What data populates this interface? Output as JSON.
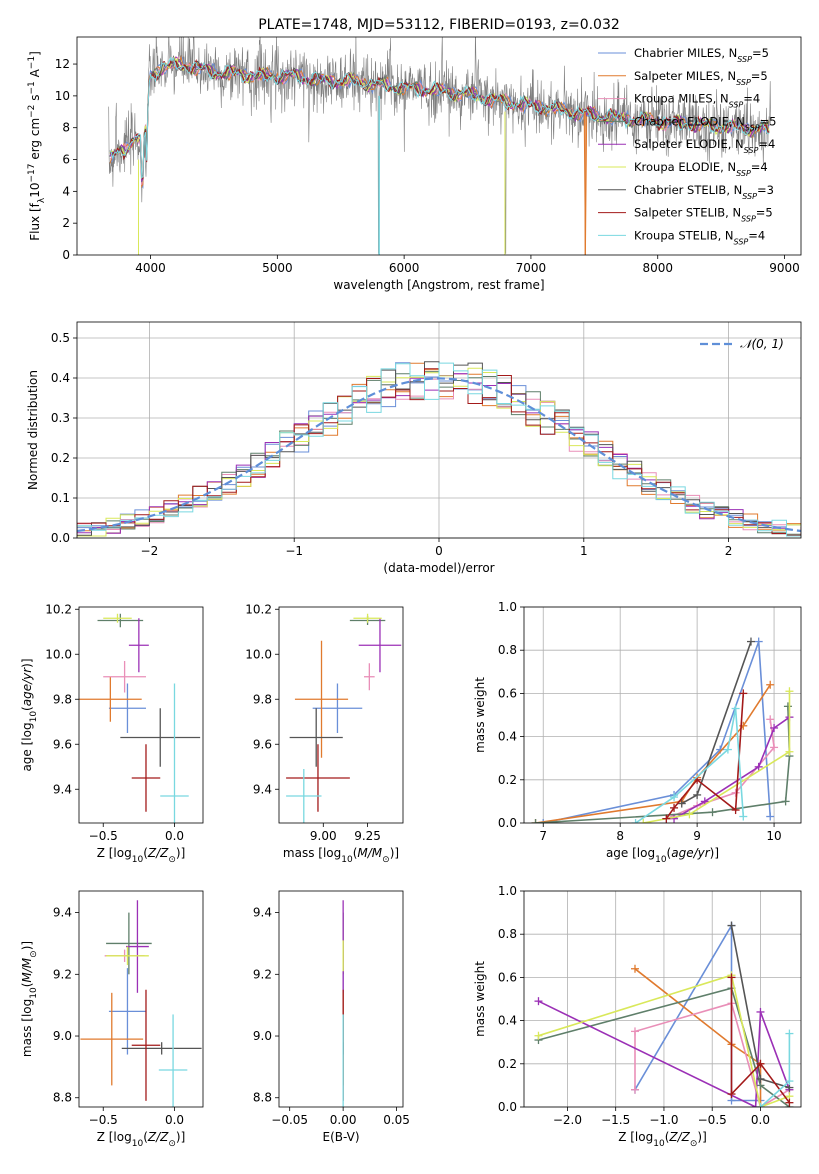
{
  "colors": [
    "#6a8fd8",
    "#e07a2e",
    "#e98fb8",
    "#5f7f6a",
    "#9b30b6",
    "#d9e85a",
    "#555555",
    "#a31a1a",
    "#79d8e0"
  ],
  "chart_data": [
    {
      "id": "spectrum",
      "type": "line",
      "title": "PLATE=1748, MJD=53112, FIBERID=0193, z=0.032",
      "xlabel": "wavelength [Angstrom, rest frame]",
      "ylabel": "Flux [f_λ 10^-17 erg cm^-2 s^-1 A^-1]",
      "xlim": [
        3420,
        9130
      ],
      "ylim": [
        0,
        13.7
      ],
      "xticks": [
        "4000",
        "5000",
        "6000",
        "7000",
        "8000",
        "9000"
      ],
      "yticks": [
        "0",
        "2",
        "4",
        "6",
        "8",
        "10",
        "12"
      ],
      "grid": false,
      "legend_position": "top-right",
      "legend": [
        {
          "base": "Chabrier MILES, N",
          "sub": "SSP",
          "tail": "=5"
        },
        {
          "base": "Salpeter MILES, N",
          "sub": "SSP",
          "tail": "=5"
        },
        {
          "base": "Kroupa MILES, N",
          "sub": "SSP",
          "tail": "=4"
        },
        {
          "base": "Chabrier ELODIE, N",
          "sub": "SSP",
          "tail": "=5"
        },
        {
          "base": "Salpeter ELODIE, N",
          "sub": "SSP",
          "tail": "=4"
        },
        {
          "base": "Kroupa ELODIE, N",
          "sub": "SSP",
          "tail": "=4"
        },
        {
          "base": "Chabrier STELIB, N",
          "sub": "SSP",
          "tail": "=3"
        },
        {
          "base": "Salpeter STELIB, N",
          "sub": "SSP",
          "tail": "=5"
        },
        {
          "base": "Kroupa STELIB, N",
          "sub": "SSP",
          "tail": "=4"
        }
      ],
      "continuum": {
        "x": [
          3700,
          3800,
          3900,
          4000,
          4100,
          4300,
          4500,
          4700,
          4900,
          5100,
          5300,
          5600,
          5900,
          6200,
          6500,
          6800,
          7100,
          7400,
          7700,
          8000,
          8300,
          8600,
          8900
        ],
        "y": [
          6.2,
          6.6,
          7.8,
          11.2,
          11.9,
          11.9,
          11.5,
          11.4,
          11.2,
          11.3,
          11.0,
          10.9,
          10.6,
          10.4,
          10.1,
          9.6,
          9.3,
          8.9,
          8.6,
          8.4,
          8.2,
          8.0,
          7.9
        ]
      },
      "notes": "observed spectrum (grey) overplotted with 9 model fits; sharp drops near 3900, 5800, 6800 and 7430 Angstrom"
    },
    {
      "id": "residuals",
      "type": "histogram",
      "xlabel": "(data-model)/error",
      "ylabel": "Normed distribution",
      "xlim": [
        -2.5,
        2.5
      ],
      "ylim": [
        0,
        0.54
      ],
      "xticks": [
        -2,
        -1,
        0,
        1,
        2
      ],
      "yticks": [
        0.0,
        0.1,
        0.2,
        0.3,
        0.4,
        0.5
      ],
      "grid": true,
      "legend_position": "top-right",
      "legend": [
        "𝒩(0, 1)"
      ],
      "bin_width": 0.1,
      "reference_curve": "gaussian mean 0 sigma 1",
      "series_count": 9
    },
    {
      "id": "age-vs-Z",
      "type": "errorbar",
      "xlabel": "Z [log10(Z/Z⊙)]",
      "ylabel": "age  [log10(age/yr)]",
      "xlim": [
        -0.67,
        0.2
      ],
      "ylim": [
        9.25,
        10.21
      ],
      "xticks": [
        -0.5,
        0.0
      ],
      "yticks": [
        9.4,
        9.6,
        9.8,
        10.0,
        10.2
      ],
      "points": [
        {
          "x": -0.33,
          "y": 9.76,
          "xerr": 0.13,
          "yerr": 0.11
        },
        {
          "x": -0.45,
          "y": 9.8,
          "xerr": 0.22,
          "yerr": 0.1
        },
        {
          "x": -0.35,
          "y": 9.9,
          "xerr": 0.15,
          "yerr": 0.07
        },
        {
          "x": -0.38,
          "y": 10.15,
          "xerr": 0.16,
          "yerr": 0.03
        },
        {
          "x": -0.25,
          "y": 10.04,
          "xerr": 0.07,
          "yerr": 0.12
        },
        {
          "x": -0.4,
          "y": 10.16,
          "xerr": 0.1,
          "yerr": 0.02
        },
        {
          "x": -0.1,
          "y": 9.63,
          "xerr": 0.28,
          "yerr": 0.13
        },
        {
          "x": -0.2,
          "y": 9.45,
          "xerr": 0.1,
          "yerr": 0.15
        },
        {
          "x": 0.0,
          "y": 9.37,
          "xerr": 0.1,
          "yerr": 0.5
        }
      ]
    },
    {
      "id": "age-vs-mass",
      "type": "errorbar",
      "xlabel": "mass [log10(M/M⊙)]",
      "ylabel": "",
      "xlim": [
        8.75,
        9.45
      ],
      "ylim": [
        9.25,
        10.21
      ],
      "xticks": [
        9.0,
        9.25
      ],
      "yticks": [
        9.4,
        9.6,
        9.8,
        10.0,
        10.2
      ],
      "points": [
        {
          "x": 9.08,
          "y": 9.76,
          "xerr": 0.14,
          "yerr": 0.11
        },
        {
          "x": 8.99,
          "y": 9.8,
          "xerr": 0.15,
          "yerr": 0.26
        },
        {
          "x": 9.26,
          "y": 9.9,
          "xerr": 0.03,
          "yerr": 0.06
        },
        {
          "x": 9.25,
          "y": 10.15,
          "xerr": 0.1,
          "yerr": 0.02
        },
        {
          "x": 9.32,
          "y": 10.04,
          "xerr": 0.12,
          "yerr": 0.12
        },
        {
          "x": 9.25,
          "y": 10.16,
          "xerr": 0.08,
          "yerr": 0.02
        },
        {
          "x": 8.96,
          "y": 9.63,
          "xerr": 0.15,
          "yerr": 0.13
        },
        {
          "x": 8.97,
          "y": 9.45,
          "xerr": 0.18,
          "yerr": 0.15
        },
        {
          "x": 8.89,
          "y": 9.37,
          "xerr": 0.1,
          "yerr": 0.12
        }
      ]
    },
    {
      "id": "massweight-vs-age",
      "type": "line",
      "xlabel": "age  [log10(age/yr)]",
      "ylabel": "mass weight",
      "xlim": [
        6.75,
        10.35
      ],
      "ylim": [
        0,
        1.0
      ],
      "xticks": [
        7,
        8,
        9,
        10
      ],
      "yticks": [
        0.0,
        0.2,
        0.4,
        0.6,
        0.8,
        1.0
      ],
      "grid": true,
      "series": [
        {
          "x": [
            7.0,
            8.7,
            9.3,
            9.8,
            9.95
          ],
          "y": [
            0.0,
            0.13,
            0.34,
            0.84,
            0.03
          ]
        },
        {
          "x": [
            6.9,
            8.8,
            9.0,
            9.6,
            9.95
          ],
          "y": [
            0.0,
            0.1,
            0.21,
            0.45,
            0.64
          ]
        },
        {
          "x": [
            8.6,
            9.0,
            9.5,
            10.0,
            9.95
          ],
          "y": [
            0.02,
            0.08,
            0.14,
            0.35,
            0.48
          ]
        },
        {
          "x": [
            6.9,
            9.2,
            10.15,
            10.2,
            10.18
          ],
          "y": [
            0.0,
            0.05,
            0.1,
            0.31,
            0.54
          ]
        },
        {
          "x": [
            8.7,
            9.1,
            9.8,
            10.0,
            10.2
          ],
          "y": [
            0.02,
            0.1,
            0.26,
            0.44,
            0.49
          ]
        },
        {
          "x": [
            8.3,
            8.9,
            10.2,
            10.2
          ],
          "y": [
            0.0,
            0.04,
            0.33,
            0.61
          ]
        },
        {
          "x": [
            8.8,
            9.0,
            9.7
          ],
          "y": [
            0.09,
            0.13,
            0.84
          ]
        },
        {
          "x": [
            8.6,
            8.7,
            9.0,
            9.5,
            9.6
          ],
          "y": [
            0.02,
            0.07,
            0.2,
            0.06,
            0.6
          ]
        },
        {
          "x": [
            8.2,
            8.7,
            9.4,
            9.5,
            9.6
          ],
          "y": [
            0.0,
            0.12,
            0.34,
            0.53,
            0.03
          ]
        }
      ]
    },
    {
      "id": "mass-vs-Z",
      "type": "errorbar",
      "xlabel": "Z [log10(Z/Z⊙)]",
      "ylabel": "mass [log10(M/M⊙)]",
      "xlim": [
        -0.67,
        0.2
      ],
      "ylim": [
        8.77,
        9.47
      ],
      "xticks": [
        -0.5,
        0.0
      ],
      "yticks": [
        8.8,
        9.0,
        9.2,
        9.4
      ],
      "points": [
        {
          "x": -0.33,
          "y": 9.08,
          "xerr": 0.13,
          "yerr": 0.14
        },
        {
          "x": -0.44,
          "y": 8.99,
          "xerr": 0.22,
          "yerr": 0.15
        },
        {
          "x": -0.35,
          "y": 9.26,
          "xerr": 0.14,
          "yerr": 0.02
        },
        {
          "x": -0.32,
          "y": 9.3,
          "xerr": 0.16,
          "yerr": 0.1
        },
        {
          "x": -0.26,
          "y": 9.29,
          "xerr": 0.08,
          "yerr": 0.15
        },
        {
          "x": -0.33,
          "y": 9.26,
          "xerr": 0.15,
          "yerr": 0.03
        },
        {
          "x": -0.09,
          "y": 8.96,
          "xerr": 0.28,
          "yerr": 0.02
        },
        {
          "x": -0.2,
          "y": 8.97,
          "xerr": 0.1,
          "yerr": 0.18
        },
        {
          "x": -0.01,
          "y": 8.89,
          "xerr": 0.1,
          "yerr": 0.18
        }
      ]
    },
    {
      "id": "mass-vs-EBV",
      "type": "errorbar",
      "xlabel": "E(B-V)",
      "ylabel": "",
      "xlim": [
        -0.06,
        0.056
      ],
      "ylim": [
        8.77,
        9.47
      ],
      "xticks": [
        -0.05,
        0.0,
        0.05
      ],
      "yticks": [
        8.8,
        9.0,
        9.2,
        9.4
      ],
      "points": [
        {
          "x": 0.0,
          "y": 9.08,
          "xerr": 0,
          "yerr": 0.14
        },
        {
          "x": 0.0,
          "y": 8.99,
          "xerr": 0,
          "yerr": 0.15
        },
        {
          "x": 0.0,
          "y": 9.26,
          "xerr": 0,
          "yerr": 0.02
        },
        {
          "x": 0.0,
          "y": 9.3,
          "xerr": 0,
          "yerr": 0.1
        },
        {
          "x": 0.0,
          "y": 9.29,
          "xerr": 0,
          "yerr": 0.15
        },
        {
          "x": 0.0,
          "y": 9.26,
          "xerr": 0,
          "yerr": 0.05
        },
        {
          "x": 0.0,
          "y": 8.96,
          "xerr": 0,
          "yerr": 0.02
        },
        {
          "x": 0.0,
          "y": 8.97,
          "xerr": 0,
          "yerr": 0.18
        },
        {
          "x": 0.0,
          "y": 8.89,
          "xerr": 0,
          "yerr": 0.18
        }
      ]
    },
    {
      "id": "massweight-vs-Z",
      "type": "line",
      "xlabel": "Z [log10(Z/Z⊙)]",
      "ylabel": "mass weight",
      "xlim": [
        -2.45,
        0.42
      ],
      "ylim": [
        0,
        1.0
      ],
      "xticks": [
        -2.0,
        -1.5,
        -1.0,
        -0.5,
        0.0
      ],
      "yticks": [
        0.0,
        0.2,
        0.4,
        0.6,
        0.8,
        1.0
      ],
      "grid": true,
      "series": [
        {
          "x": [
            -1.3,
            -0.3,
            -0.3,
            0.0
          ],
          "y": [
            0.08,
            0.84,
            0.03,
            0.03
          ]
        },
        {
          "x": [
            -1.3,
            -0.3,
            0.0,
            0.0
          ],
          "y": [
            0.64,
            0.29,
            0.2,
            0.0
          ]
        },
        {
          "x": [
            -1.3,
            -1.3,
            -0.3,
            0.0,
            0.3
          ],
          "y": [
            0.08,
            0.35,
            0.48,
            0.0,
            0.08
          ]
        },
        {
          "x": [
            -2.3,
            -0.3,
            0.0,
            0.3
          ],
          "y": [
            0.31,
            0.55,
            0.1,
            0.0
          ]
        },
        {
          "x": [
            -2.3,
            -0.05,
            0.0,
            0.3
          ],
          "y": [
            0.49,
            0.0,
            0.44,
            0.08
          ]
        },
        {
          "x": [
            -2.3,
            -0.3,
            0.0,
            0.3
          ],
          "y": [
            0.33,
            0.61,
            0.0,
            0.05
          ]
        },
        {
          "x": [
            -0.3,
            0.0,
            0.3
          ],
          "y": [
            0.84,
            0.13,
            0.09
          ]
        },
        {
          "x": [
            -0.3,
            -0.3,
            0.0,
            0.3
          ],
          "y": [
            0.6,
            0.06,
            0.2,
            0.02
          ]
        },
        {
          "x": [
            0.0,
            0.3,
            0.3
          ],
          "y": [
            0.0,
            0.12,
            0.34
          ]
        }
      ]
    }
  ]
}
